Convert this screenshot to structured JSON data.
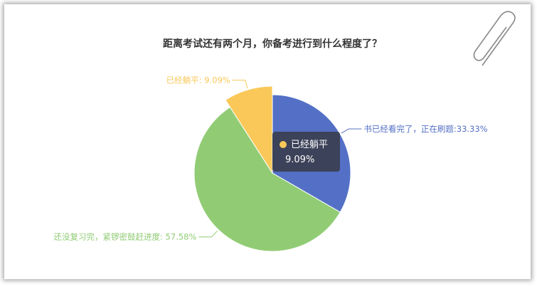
{
  "chart_data": {
    "type": "pie",
    "title": "距离考试还有两个月，你备考进行到什么程度了？",
    "slices": [
      {
        "label": "书已经看完了，正在刷题",
        "value": 33.33,
        "display": "书已经看完了，正在刷题:33.33%",
        "color": "#5470c6"
      },
      {
        "label": "还没复习完，紧锣密鼓赶进度",
        "value": 57.58,
        "display": "还没复习完，紧锣密鼓赶进度: 57.58%",
        "color": "#91cc75"
      },
      {
        "label": "已经躺平",
        "value": 9.09,
        "display": "已经躺平: 9.09%",
        "color": "#fac858",
        "highlighted": true
      }
    ],
    "tooltip": {
      "label": "已经躺平",
      "value": "9.09%",
      "color": "#fac858"
    }
  },
  "decor": {
    "icon": "paperclip-icon"
  }
}
